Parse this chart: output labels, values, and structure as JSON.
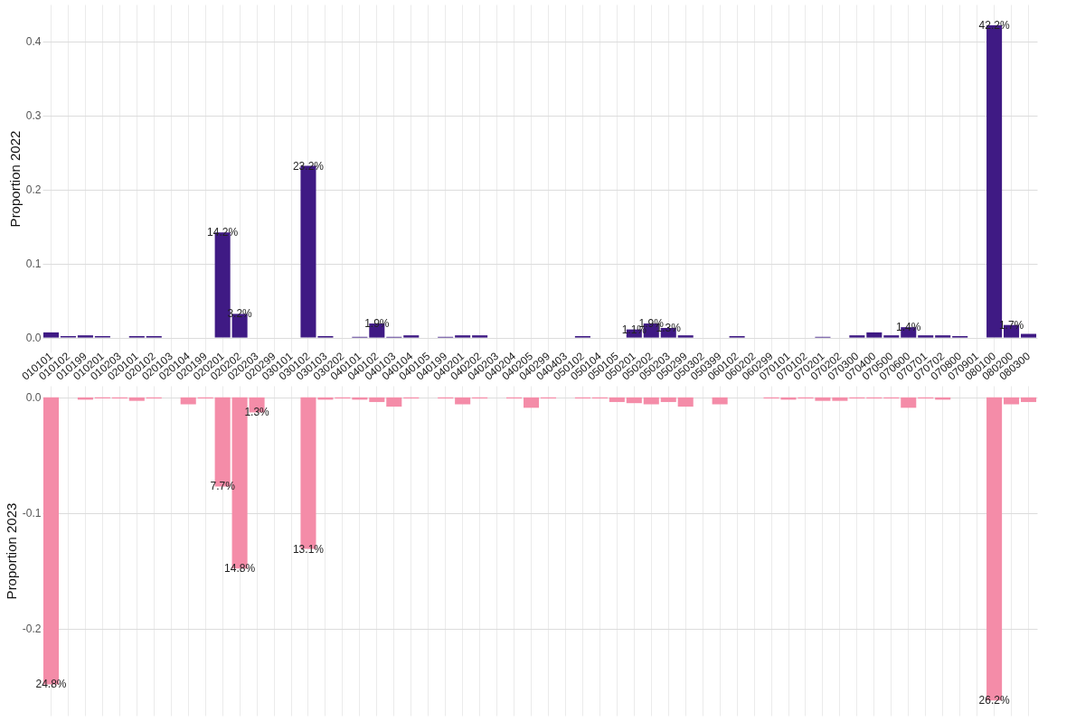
{
  "chart_data": [
    {
      "type": "bar",
      "ylabel": "Proportion 2022",
      "color": "#3f1a84",
      "grid": true,
      "categories": [
        "010101",
        "010102",
        "010199",
        "010201",
        "010203",
        "020101",
        "020102",
        "020103",
        "020104",
        "020199",
        "020201",
        "020202",
        "020203",
        "020299",
        "030101",
        "030102",
        "030103",
        "030202",
        "040101",
        "040102",
        "040103",
        "040104",
        "040105",
        "040199",
        "040201",
        "040202",
        "040203",
        "040204",
        "040205",
        "040299",
        "040403",
        "050102",
        "050104",
        "050105",
        "050201",
        "050202",
        "050203",
        "050299",
        "050302",
        "050399",
        "060102",
        "060202",
        "060299",
        "070101",
        "070102",
        "070201",
        "070202",
        "070300",
        "070400",
        "070500",
        "070600",
        "070701",
        "070702",
        "070800",
        "070901",
        "080100",
        "080200",
        "080300"
      ],
      "values": [
        0.007,
        0.002,
        0.003,
        0.002,
        0,
        0.002,
        0.002,
        0,
        0,
        0,
        0.142,
        0.032,
        0,
        0,
        0,
        0.232,
        0.002,
        0,
        0.001,
        0.019,
        0.001,
        0.003,
        0,
        0.001,
        0.003,
        0.003,
        0,
        0,
        0,
        0,
        0,
        0.002,
        0,
        0,
        0.011,
        0.019,
        0.013,
        0.003,
        0,
        0,
        0.002,
        0,
        0,
        0,
        0,
        0.001,
        0,
        0.003,
        0.007,
        0.003,
        0.014,
        0.003,
        0.003,
        0.002,
        0,
        0.422,
        0.017,
        0.005
      ],
      "value_labels": [
        null,
        null,
        null,
        null,
        null,
        null,
        null,
        null,
        null,
        null,
        "14.2%",
        "3.2%",
        null,
        null,
        null,
        "23.2%",
        null,
        null,
        null,
        "1.9%",
        null,
        null,
        null,
        null,
        null,
        null,
        null,
        null,
        null,
        null,
        null,
        null,
        null,
        null,
        "1.1%",
        "1.9%",
        "1.3%",
        null,
        null,
        null,
        null,
        null,
        null,
        null,
        null,
        null,
        null,
        null,
        null,
        null,
        "1.4%",
        null,
        null,
        null,
        null,
        "42.2%",
        "1.7%",
        null
      ],
      "ylim": [
        -0.02,
        0.45
      ],
      "yticks": [
        {
          "value": 0,
          "label": "0.0"
        },
        0.1,
        0.2,
        0.3,
        0.4
      ]
    },
    {
      "type": "bar",
      "ylabel": "Proportion 2023",
      "color": "#f48ca8",
      "grid": true,
      "tick_labels": "y",
      "categories": [
        "010101",
        "010102",
        "010199",
        "010201",
        "010203",
        "020101",
        "020102",
        "020103",
        "020104",
        "020199",
        "020201",
        "020202",
        "020203",
        "020299",
        "030101",
        "030102",
        "030103",
        "030202",
        "040101",
        "040102",
        "040103",
        "040104",
        "040105",
        "040199",
        "040201",
        "040202",
        "040203",
        "040204",
        "040205",
        "040299",
        "040403",
        "050102",
        "050104",
        "050105",
        "050201",
        "050202",
        "050203",
        "050299",
        "050302",
        "050399",
        "060102",
        "060202",
        "060299",
        "070101",
        "070102",
        "070201",
        "070202",
        "070300",
        "070400",
        "070500",
        "070600",
        "070701",
        "070702",
        "070800",
        "070901",
        "080100",
        "080200",
        "080300"
      ],
      "values": [
        -0.248,
        0,
        -0.002,
        -0.001,
        -0.001,
        -0.003,
        -0.001,
        0,
        -0.006,
        -0.001,
        -0.077,
        -0.148,
        -0.013,
        0,
        0,
        -0.131,
        -0.002,
        -0.001,
        -0.002,
        -0.004,
        -0.008,
        -0.001,
        0,
        -0.001,
        -0.006,
        -0.001,
        0,
        -0.001,
        -0.009,
        -0.001,
        0,
        -0.001,
        -0.001,
        -0.004,
        -0.005,
        -0.006,
        -0.004,
        -0.008,
        0,
        -0.006,
        0,
        0,
        -0.001,
        -0.002,
        -0.001,
        -0.003,
        -0.003,
        -0.001,
        -0.001,
        -0.001,
        -0.009,
        -0.001,
        -0.002,
        0,
        0,
        -0.262,
        -0.006,
        -0.004
      ],
      "annotations": [
        {
          "text": "24.8%",
          "x": "010101",
          "y": -0.248
        },
        {
          "text": "7.7%",
          "x": "020201",
          "y": -0.077
        },
        {
          "text": "14.8%",
          "x": "020202",
          "y": -0.148
        },
        {
          "text": "1.3%",
          "x": "020203",
          "y": -0.013
        },
        {
          "text": "13.1%",
          "x": "030102",
          "y": -0.131
        },
        {
          "text": "26.2%",
          "x": "080100",
          "y": -0.262
        }
      ],
      "ylim": [
        -0.275,
        0.01
      ],
      "yticks": [
        {
          "value": 0,
          "label": "0.0"
        },
        -0.1,
        -0.2
      ]
    }
  ]
}
